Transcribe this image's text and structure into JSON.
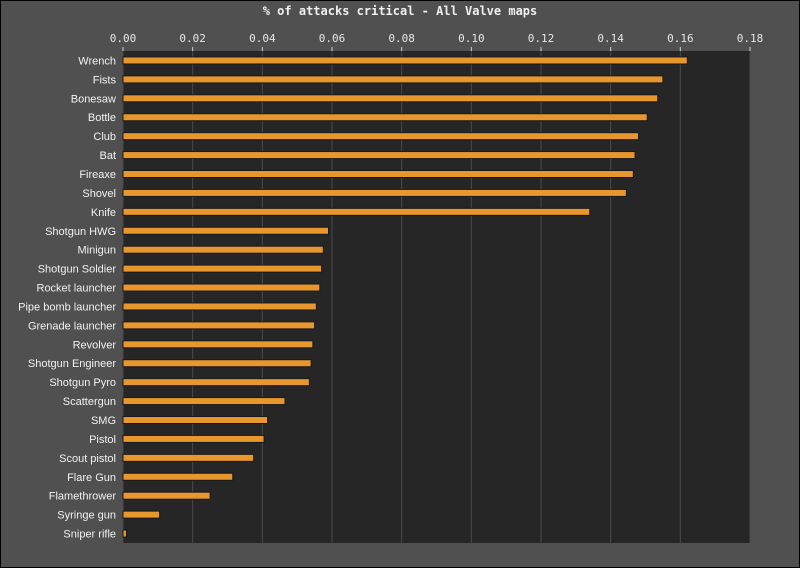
{
  "chart_data": {
    "type": "bar",
    "orientation": "horizontal",
    "title": "% of attacks critical - All Valve maps",
    "xlabel": "",
    "ylabel": "",
    "xlim": [
      0,
      0.18
    ],
    "xticks": [
      "0.00",
      "0.02",
      "0.04",
      "0.06",
      "0.08",
      "0.10",
      "0.12",
      "0.14",
      "0.16",
      "0.18"
    ],
    "grid": true,
    "categories": [
      "Wrench",
      "Fists",
      "Bonesaw",
      "Bottle",
      "Club",
      "Bat",
      "Fireaxe",
      "Shovel",
      "Knife",
      "Shotgun HWG",
      "Minigun",
      "Shotgun Soldier",
      "Rocket launcher",
      "Pipe bomb launcher",
      "Grenade launcher",
      "Revolver",
      "Shotgun Engineer",
      "Shotgun Pyro",
      "Scattergun",
      "SMG",
      "Pistol",
      "Scout pistol",
      "Flare Gun",
      "Flamethrower",
      "Syringe gun",
      "Sniper rifle"
    ],
    "values": [
      0.162,
      0.155,
      0.1535,
      0.1505,
      0.148,
      0.147,
      0.1465,
      0.1445,
      0.134,
      0.059,
      0.0575,
      0.057,
      0.0565,
      0.0555,
      0.055,
      0.0545,
      0.054,
      0.0535,
      0.0465,
      0.0415,
      0.0405,
      0.0375,
      0.0315,
      0.025,
      0.0105,
      0.001
    ],
    "colors": {
      "bar": "#e8962e",
      "bar_edge": "#1a1a1a",
      "plot_bg": "#262626",
      "page_bg": "#505050",
      "grid": "#4a4a4a"
    }
  }
}
